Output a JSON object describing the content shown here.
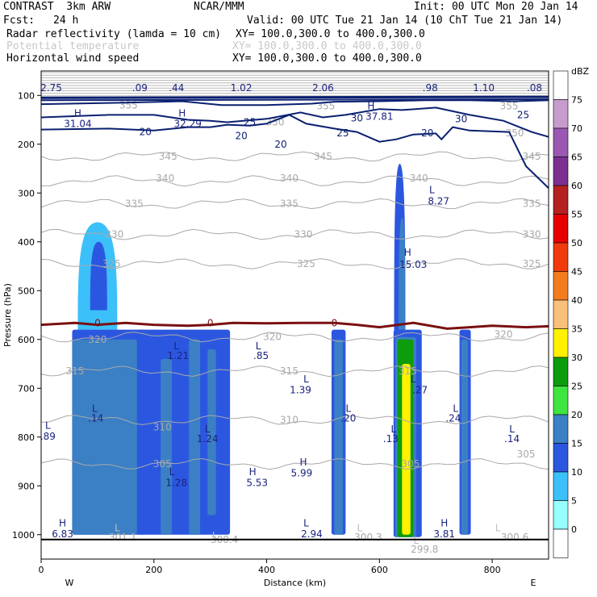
{
  "header": {
    "model": "CONTRAST  3km ARW",
    "center": "NCAR/MMM",
    "init": "Init: 00 UTC Mon 20 Jan 14",
    "fcst_label": "Fcst:",
    "fcst_value": "24 h",
    "valid": "Valid: 00 UTC Tue 21 Jan 14 (10 ChT Tue 21 Jan 14)",
    "fields": [
      {
        "name": "Radar reflectivity (lamda = 10 cm)",
        "xy": "XY= 100.0,300.0 to 400.0,300.0",
        "muted": false
      },
      {
        "name": "Potential temperature",
        "xy": "XY= 100.0,300.0 to 400.0,300.0",
        "muted": true
      },
      {
        "name": "Horizontal wind speed",
        "xy": "XY= 100.0,300.0 to 400.0,300.0",
        "muted": false
      }
    ]
  },
  "chart_data": {
    "type": "heatmap",
    "xlabel": "Distance (km)",
    "ylabel": "Pressure (hPa)",
    "xlim": [
      0,
      900
    ],
    "ylim": [
      1050,
      50
    ],
    "x_ticks": [
      0,
      200,
      400,
      600,
      800
    ],
    "y_ticks": [
      100,
      200,
      300,
      400,
      500,
      600,
      700,
      800,
      900,
      1000
    ],
    "x_end_labels": [
      "W",
      "E"
    ],
    "colorbar": {
      "unit": "dBZ",
      "levels": [
        0,
        5,
        10,
        15,
        20,
        25,
        30,
        35,
        40,
        45,
        50,
        55,
        60,
        65,
        70,
        75
      ],
      "colors": [
        "#ffffff",
        "#97fefe",
        "#3cc0fa",
        "#2b57e0",
        "#3b7fc4",
        "#3fe43f",
        "#0c9c0c",
        "#fff100",
        "#f9c07a",
        "#f47c1e",
        "#f03a0c",
        "#e60000",
        "#b52020",
        "#7c3090",
        "#9a58b2",
        "#c79ccc",
        "#ffffff"
      ]
    },
    "reflectivity_cells": [
      {
        "x0": 55,
        "x1": 185,
        "p0": 580,
        "p1": 1000,
        "level": 10
      },
      {
        "x0": 170,
        "x1": 335,
        "p0": 580,
        "p1": 1000,
        "level": 10
      },
      {
        "x0": 55,
        "x1": 170,
        "p0": 600,
        "p1": 1000,
        "level": 15
      },
      {
        "x0": 212,
        "x1": 232,
        "p0": 640,
        "p1": 1000,
        "level": 15
      },
      {
        "x0": 262,
        "x1": 282,
        "p0": 600,
        "p1": 1000,
        "level": 15
      },
      {
        "x0": 295,
        "x1": 310,
        "p0": 620,
        "p1": 960,
        "level": 15
      },
      {
        "x0": 515,
        "x1": 540,
        "p0": 580,
        "p1": 1000,
        "level": 10
      },
      {
        "x0": 520,
        "x1": 535,
        "p0": 600,
        "p1": 1000,
        "level": 15
      },
      {
        "x0": 625,
        "x1": 675,
        "p0": 580,
        "p1": 1005,
        "level": 10
      },
      {
        "x0": 628,
        "x1": 665,
        "p0": 595,
        "p1": 1005,
        "level": 15
      },
      {
        "x0": 632,
        "x1": 660,
        "p0": 600,
        "p1": 1005,
        "level": 25
      },
      {
        "x0": 640,
        "x1": 655,
        "p0": 650,
        "p1": 1000,
        "level": 30
      },
      {
        "x0": 742,
        "x1": 762,
        "p0": 580,
        "p1": 1000,
        "level": 10
      },
      {
        "x0": 745,
        "x1": 757,
        "p0": 600,
        "p1": 1000,
        "level": 15
      }
    ],
    "reflectivity_plumes": [
      {
        "xc": 100,
        "half": 35,
        "top": 360,
        "bottom": 580,
        "level": 5
      },
      {
        "xc": 102,
        "half": 15,
        "top": 400,
        "bottom": 540,
        "level": 10
      },
      {
        "xc": 636,
        "half": 10,
        "top": 240,
        "bottom": 600,
        "level": 10
      },
      {
        "xc": 640,
        "half": 6,
        "top": 350,
        "bottom": 600,
        "level": 15
      }
    ],
    "theta_contours": [
      {
        "value": 345,
        "p": 225
      },
      {
        "value": 340,
        "p": 275
      },
      {
        "value": 335,
        "p": 322
      },
      {
        "value": 330,
        "p": 385
      },
      {
        "value": 325,
        "p": 445
      },
      {
        "value": 320,
        "p": 595
      },
      {
        "value": 315,
        "p": 665
      },
      {
        "value": 310,
        "p": 765
      },
      {
        "value": 305,
        "p": 855
      }
    ],
    "theta_labels": [
      {
        "text": "355",
        "x": 155,
        "p": 120
      },
      {
        "text": "355",
        "x": 505,
        "p": 122
      },
      {
        "text": "355",
        "x": 830,
        "p": 122
      },
      {
        "text": "350",
        "x": 415,
        "p": 155
      },
      {
        "text": "350",
        "x": 840,
        "p": 177
      },
      {
        "text": "345",
        "x": 225,
        "p": 225
      },
      {
        "text": "345",
        "x": 500,
        "p": 225
      },
      {
        "text": "345",
        "x": 870,
        "p": 225
      },
      {
        "text": "340",
        "x": 220,
        "p": 270
      },
      {
        "text": "340",
        "x": 440,
        "p": 270
      },
      {
        "text": "340",
        "x": 670,
        "p": 270
      },
      {
        "text": "335",
        "x": 165,
        "p": 322
      },
      {
        "text": "335",
        "x": 440,
        "p": 322
      },
      {
        "text": "335",
        "x": 870,
        "p": 322
      },
      {
        "text": "330",
        "x": 130,
        "p": 385
      },
      {
        "text": "330",
        "x": 465,
        "p": 385
      },
      {
        "text": "330",
        "x": 870,
        "p": 385
      },
      {
        "text": "325",
        "x": 125,
        "p": 445
      },
      {
        "text": "325",
        "x": 470,
        "p": 445
      },
      {
        "text": "325",
        "x": 870,
        "p": 445
      },
      {
        "text": "320",
        "x": 100,
        "p": 600
      },
      {
        "text": "320",
        "x": 410,
        "p": 595
      },
      {
        "text": "320",
        "x": 820,
        "p": 590
      },
      {
        "text": "315",
        "x": 60,
        "p": 665
      },
      {
        "text": "315",
        "x": 440,
        "p": 665
      },
      {
        "text": "315",
        "x": 650,
        "p": 665
      },
      {
        "text": "310",
        "x": 215,
        "p": 780
      },
      {
        "text": "310",
        "x": 440,
        "p": 765
      },
      {
        "text": "305",
        "x": 215,
        "p": 855
      },
      {
        "text": "305",
        "x": 655,
        "p": 855
      },
      {
        "text": "305",
        "x": 860,
        "p": 835
      },
      {
        "text": "301.1",
        "x": 145,
        "p": 1005
      },
      {
        "text": "300.4",
        "x": 325,
        "p": 1010
      },
      {
        "text": "300.3",
        "x": 580,
        "p": 1005
      },
      {
        "text": "299.8",
        "x": 680,
        "p": 1030
      },
      {
        "text": "300.6",
        "x": 840,
        "p": 1005
      }
    ],
    "wind_contours": [
      {
        "value": 20,
        "points": [
          [
            0,
            170
          ],
          [
            120,
            168
          ],
          [
            200,
            172
          ],
          [
            260,
            165
          ],
          [
            300,
            165
          ],
          [
            330,
            160
          ],
          [
            370,
            162
          ],
          [
            400,
            158
          ],
          [
            440,
            140
          ],
          [
            470,
            158
          ],
          [
            520,
            168
          ],
          [
            560,
            175
          ],
          [
            600,
            195
          ],
          [
            630,
            190
          ],
          [
            660,
            180
          ],
          [
            700,
            178
          ],
          [
            710,
            190
          ],
          [
            730,
            165
          ],
          [
            760,
            172
          ],
          [
            830,
            175
          ],
          [
            860,
            245
          ],
          [
            900,
            290
          ]
        ]
      },
      {
        "value": 25,
        "points": [
          [
            0,
            145
          ],
          [
            120,
            140
          ],
          [
            200,
            140
          ],
          [
            260,
            150
          ],
          [
            300,
            152
          ],
          [
            330,
            155
          ],
          [
            400,
            148
          ],
          [
            460,
            135
          ],
          [
            500,
            145
          ],
          [
            540,
            140
          ],
          [
            600,
            128
          ],
          [
            640,
            130
          ],
          [
            700,
            125
          ],
          [
            760,
            140
          ],
          [
            820,
            152
          ],
          [
            870,
            175
          ],
          [
            900,
            185
          ]
        ]
      },
      {
        "value": 30,
        "points": [
          [
            0,
            118
          ],
          [
            150,
            115
          ],
          [
            250,
            112
          ],
          [
            320,
            120
          ],
          [
            400,
            120
          ],
          [
            480,
            117
          ],
          [
            520,
            113
          ],
          [
            600,
            112
          ],
          [
            680,
            110
          ],
          [
            760,
            110
          ],
          [
            840,
            112
          ],
          [
            900,
            110
          ]
        ]
      }
    ],
    "wind_labels": [
      {
        "text": "20",
        "x": 185,
        "p": 175
      },
      {
        "text": "20",
        "x": 355,
        "p": 183
      },
      {
        "text": "20",
        "x": 425,
        "p": 200
      },
      {
        "text": "20",
        "x": 685,
        "p": 177
      },
      {
        "text": "25",
        "x": 370,
        "p": 155
      },
      {
        "text": "25",
        "x": 535,
        "p": 177
      },
      {
        "text": "25",
        "x": 855,
        "p": 140
      },
      {
        "text": "30",
        "x": 560,
        "p": 147
      },
      {
        "text": "30",
        "x": 745,
        "p": 148
      }
    ],
    "zero_line": {
      "label": "0",
      "points": [
        [
          0,
          570
        ],
        [
          60,
          566
        ],
        [
          100,
          570
        ],
        [
          150,
          566
        ],
        [
          200,
          570
        ],
        [
          260,
          572
        ],
        [
          300,
          570
        ],
        [
          340,
          566
        ],
        [
          400,
          567
        ],
        [
          460,
          566
        ],
        [
          520,
          566
        ],
        [
          560,
          570
        ],
        [
          600,
          575
        ],
        [
          660,
          566
        ],
        [
          720,
          578
        ],
        [
          760,
          575
        ],
        [
          800,
          572
        ],
        [
          860,
          575
        ],
        [
          900,
          573
        ]
      ],
      "label_x": [
        100,
        300,
        520
      ]
    },
    "pressure_labels": [
      {
        "text": "H",
        "x": 65,
        "p": 135,
        "color": "#1a237e"
      },
      {
        "text": "31.04",
        "x": 65,
        "p": 157,
        "color": "#1a237e"
      },
      {
        "text": "H",
        "x": 250,
        "p": 135,
        "color": "#1a237e"
      },
      {
        "text": "32.29",
        "x": 260,
        "p": 157,
        "color": "#1a237e"
      },
      {
        "text": "H",
        "x": 585,
        "p": 120,
        "color": "#1a237e"
      },
      {
        "text": "37.81",
        "x": 600,
        "p": 142,
        "color": "#1a237e"
      },
      {
        "text": "L",
        "x": 693,
        "p": 292,
        "color": "#1a237e"
      },
      {
        "text": "8.27",
        "x": 705,
        "p": 315,
        "color": "#1a237e"
      },
      {
        "text": "H",
        "x": 650,
        "p": 420,
        "color": "#1a237e"
      },
      {
        "text": "15.03",
        "x": 660,
        "p": 445,
        "color": "#1a237e"
      },
      {
        "text": "L",
        "x": 385,
        "p": 612,
        "color": "#1a237e"
      },
      {
        "text": ".85",
        "x": 390,
        "p": 632,
        "color": "#1a237e"
      },
      {
        "text": "L",
        "x": 240,
        "p": 612,
        "color": "#1a237e"
      },
      {
        "text": "1.21",
        "x": 243,
        "p": 632,
        "color": "#1a237e"
      },
      {
        "text": "L",
        "x": 470,
        "p": 680,
        "color": "#1a237e"
      },
      {
        "text": "1.39",
        "x": 460,
        "p": 702,
        "color": "#1a237e"
      },
      {
        "text": "L",
        "x": 660,
        "p": 680,
        "color": "#1a237e"
      },
      {
        "text": ".27",
        "x": 672,
        "p": 702,
        "color": "#1a237e"
      },
      {
        "text": "L",
        "x": 95,
        "p": 740,
        "color": "#1a237e"
      },
      {
        "text": ".14",
        "x": 97,
        "p": 760,
        "color": "#1a237e"
      },
      {
        "text": "L",
        "x": 545,
        "p": 740,
        "color": "#1a237e"
      },
      {
        "text": ".20",
        "x": 545,
        "p": 760,
        "color": "#1a237e"
      },
      {
        "text": "L",
        "x": 735,
        "p": 740,
        "color": "#1a237e"
      },
      {
        "text": ".24",
        "x": 731,
        "p": 760,
        "color": "#1a237e"
      },
      {
        "text": "L",
        "x": 12,
        "p": 775,
        "color": "#1a237e"
      },
      {
        "text": ".89",
        "x": 12,
        "p": 797,
        "color": "#1a237e"
      },
      {
        "text": "L",
        "x": 295,
        "p": 782,
        "color": "#1a237e"
      },
      {
        "text": "1.24",
        "x": 295,
        "p": 802,
        "color": "#1a237e"
      },
      {
        "text": "L",
        "x": 625,
        "p": 782,
        "color": "#1a237e"
      },
      {
        "text": ".13",
        "x": 620,
        "p": 802,
        "color": "#1a237e"
      },
      {
        "text": "L",
        "x": 835,
        "p": 782,
        "color": "#1a237e"
      },
      {
        "text": ".14",
        "x": 835,
        "p": 802,
        "color": "#1a237e"
      },
      {
        "text": "H",
        "x": 465,
        "p": 850,
        "color": "#1a237e"
      },
      {
        "text": "5.99",
        "x": 462,
        "p": 872,
        "color": "#1a237e"
      },
      {
        "text": "H",
        "x": 375,
        "p": 870,
        "color": "#1a237e"
      },
      {
        "text": "5.53",
        "x": 383,
        "p": 892,
        "color": "#1a237e"
      },
      {
        "text": "L",
        "x": 232,
        "p": 870,
        "color": "#1a237e"
      },
      {
        "text": "1.28",
        "x": 240,
        "p": 892,
        "color": "#1a237e"
      },
      {
        "text": "H",
        "x": 38,
        "p": 975,
        "color": "#1a237e"
      },
      {
        "text": "6.83",
        "x": 38,
        "p": 997,
        "color": "#1a237e"
      },
      {
        "text": "L",
        "x": 470,
        "p": 975,
        "color": "#1a237e"
      },
      {
        "text": "2.94",
        "x": 480,
        "p": 997,
        "color": "#1a237e"
      },
      {
        "text": "H",
        "x": 715,
        "p": 975,
        "color": "#1a237e"
      },
      {
        "text": "3.81",
        "x": 715,
        "p": 997,
        "color": "#1a237e"
      },
      {
        "text": "L",
        "x": 135,
        "p": 985,
        "color": "#bdbdbd"
      },
      {
        "text": "L",
        "x": 308,
        "p": 1000,
        "color": "#bdbdbd"
      },
      {
        "text": "L",
        "x": 565,
        "p": 985,
        "color": "#bdbdbd"
      },
      {
        "text": "L",
        "x": 665,
        "p": 1010,
        "color": "#bdbdbd"
      },
      {
        "text": "L",
        "x": 810,
        "p": 985,
        "color": "#bdbdbd"
      }
    ],
    "top_values": [
      {
        "text": "2.75",
        "x": 18
      },
      {
        "text": ".09",
        "x": 175
      },
      {
        "text": ".44",
        "x": 240
      },
      {
        "text": "1.02",
        "x": 355
      },
      {
        "text": "2.06",
        "x": 500
      },
      {
        "text": ".98",
        "x": 690
      },
      {
        "text": "1.10",
        "x": 785
      },
      {
        "text": ".08",
        "x": 875
      }
    ]
  }
}
